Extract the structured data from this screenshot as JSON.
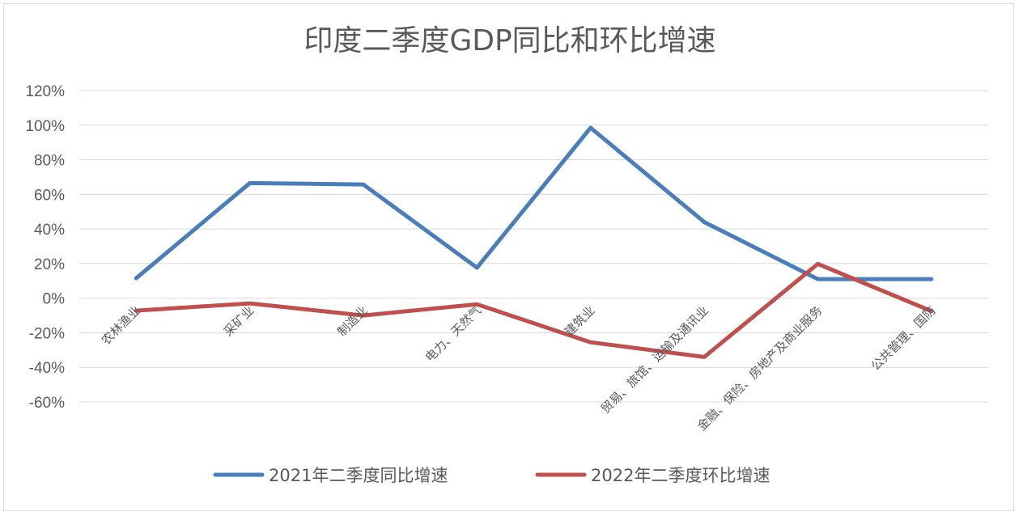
{
  "chart_data": {
    "type": "line",
    "title": "印度二季度GDP同比和环比增速",
    "categories": [
      "农林渔业",
      "采矿业",
      "制造业",
      "电力、天然气",
      "建筑业",
      "贸易、旅馆、运输及通讯业",
      "金融、保险、房地产及商业服务",
      "公共管理、国防"
    ],
    "series": [
      {
        "name": "2021年二季度同比增速",
        "color": "#4a7ebb",
        "values": [
          11.5,
          66.5,
          65.7,
          17.6,
          98.5,
          44.0,
          11.0,
          11.0
        ]
      },
      {
        "name": "2022年二季度环比增速",
        "color": "#c0504d",
        "values": [
          -7.2,
          -3.0,
          -10.0,
          -3.5,
          -25.5,
          -34.0,
          19.8,
          -7.5
        ]
      }
    ],
    "ylim": [
      -60,
      120
    ],
    "yticks": [
      "120%",
      "100%",
      "80%",
      "60%",
      "40%",
      "20%",
      "0%",
      "-20%",
      "-40%",
      "-60%"
    ],
    "ytick_values": [
      120,
      100,
      80,
      60,
      40,
      20,
      0,
      -20,
      -40,
      -60
    ],
    "grid": true,
    "legend_position": "bottom"
  }
}
